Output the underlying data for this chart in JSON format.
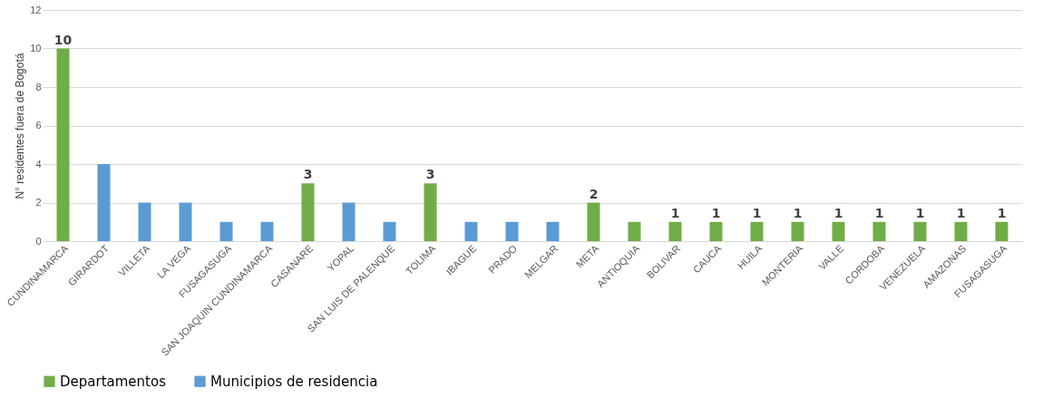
{
  "chart_data": {
    "type": "bar",
    "ylabel": "N° residentes fuera de Bogotá",
    "categories": [
      "CUNDINAMARCA",
      "GIRARDOT",
      "VILLETA",
      "LA VEGA",
      "FUSAGASUGA",
      "SAN JOAQUIN CUNDINAMARCA",
      "CASANARE",
      "YOPAL",
      "SAN LUIS DE PALENQUE",
      "TOLIMA",
      "IBAGUE",
      "PRADO",
      "MELGAR",
      "META",
      "ANTIOQUIA",
      "BOLIVAR",
      "CAUCA",
      "HUILA",
      "MONTERIA",
      "VALLE",
      "CORDOBA",
      "VENEZUELA",
      "AMAZONAS",
      "FUSAGASUGA"
    ],
    "series": [
      {
        "name": "Departamentos",
        "color": "#70ad47",
        "values": [
          10,
          null,
          null,
          null,
          null,
          null,
          3,
          null,
          null,
          3,
          null,
          null,
          null,
          2,
          1,
          1,
          1,
          1,
          1,
          1,
          1,
          1,
          1,
          1
        ],
        "value_labels": [
          "10",
          null,
          null,
          null,
          null,
          null,
          "3",
          null,
          null,
          "3",
          null,
          null,
          null,
          "2",
          null,
          "1",
          "1",
          "1",
          "1",
          "1",
          "1",
          "1",
          "1",
          "1"
        ]
      },
      {
        "name": "Municipios de residencia",
        "color": "#5b9bd5",
        "values": [
          null,
          4,
          2,
          2,
          1,
          1,
          null,
          2,
          1,
          null,
          1,
          1,
          1,
          null,
          null,
          null,
          null,
          null,
          null,
          null,
          null,
          null,
          null,
          null
        ],
        "value_labels": [
          null,
          null,
          null,
          null,
          null,
          null,
          null,
          null,
          null,
          null,
          null,
          null,
          null,
          null,
          null,
          null,
          null,
          null,
          null,
          null,
          null,
          null,
          null,
          null
        ]
      }
    ],
    "ylim": [
      0,
      12
    ],
    "yticks": [
      0,
      2,
      4,
      6,
      8,
      10,
      12
    ],
    "grid": "y",
    "legend": "bottom"
  }
}
